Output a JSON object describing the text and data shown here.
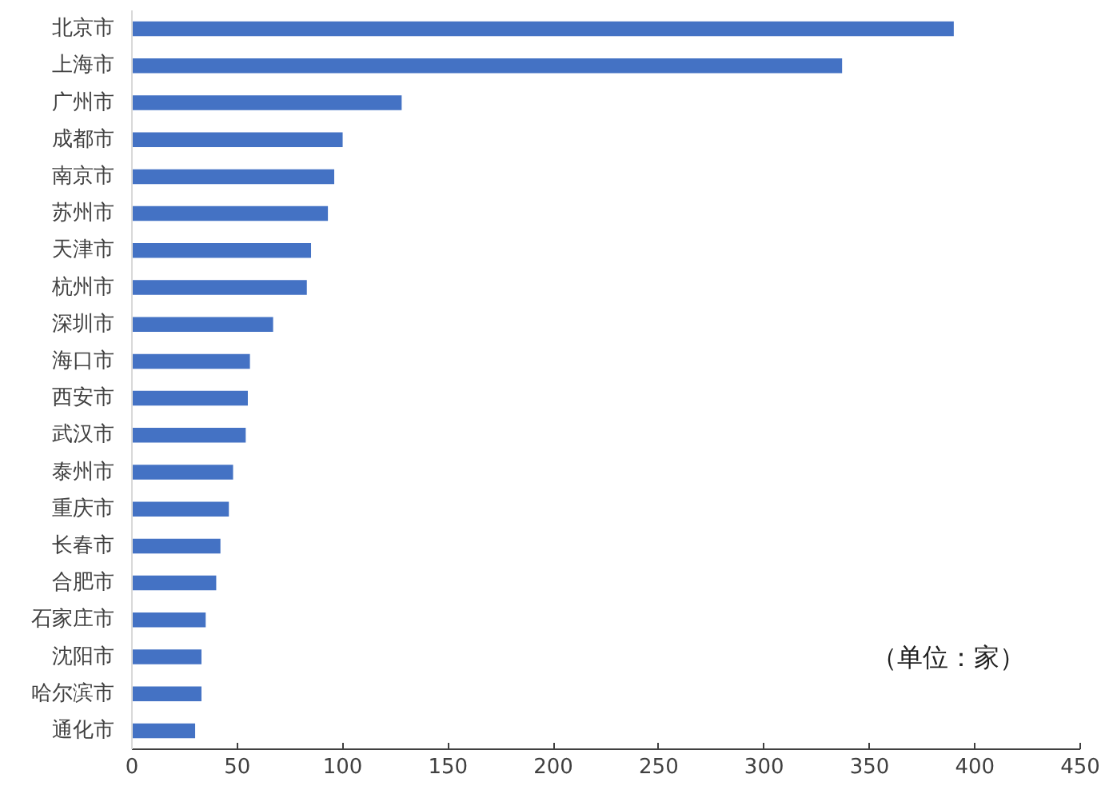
{
  "chart_data": {
    "type": "bar",
    "orientation": "horizontal",
    "categories": [
      "北京市",
      "上海市",
      "广州市",
      "成都市",
      "南京市",
      "苏州市",
      "天津市",
      "杭州市",
      "深圳市",
      "海口市",
      "西安市",
      "武汉市",
      "泰州市",
      "重庆市",
      "长春市",
      "合肥市",
      "石家庄市",
      "沈阳市",
      "哈尔滨市",
      "通化市"
    ],
    "values": [
      390,
      337,
      128,
      100,
      96,
      93,
      85,
      83,
      67,
      56,
      55,
      54,
      48,
      46,
      42,
      40,
      35,
      33,
      33,
      30
    ],
    "color": "#4472c4",
    "xlim": [
      0,
      450
    ],
    "xticks": [
      0,
      50,
      100,
      150,
      200,
      250,
      300,
      350,
      400,
      450
    ],
    "grid": false,
    "annotations": [
      "（单位：家）"
    ]
  }
}
